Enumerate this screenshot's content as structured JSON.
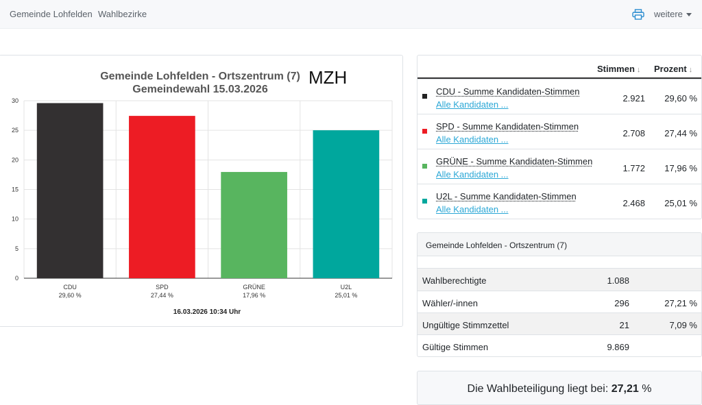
{
  "nav": {
    "gemeinde": "Gemeinde Lohfelden",
    "wahlbezirke": "Wahlbezirke",
    "print_icon": "printer-icon",
    "weitere": "weitere"
  },
  "chart_data": {
    "type": "bar",
    "title": "Gemeinde Lohfelden - Ortszentrum (7)",
    "title_extra": "MZH",
    "subtitle": "Gemeindewahl 15.03.2026",
    "categories": [
      "CDU",
      "SPD",
      "GRÜNE",
      "U2L"
    ],
    "category_labels": [
      "29,60 %",
      "27,44 %",
      "17,96 %",
      "25,01 %"
    ],
    "values": [
      29.6,
      27.44,
      17.96,
      25.01
    ],
    "colors": [
      "#333031",
      "#ed1c24",
      "#58b55f",
      "#00a79d"
    ],
    "yticks": [
      "0",
      "5",
      "10",
      "15",
      "20",
      "25",
      "30"
    ],
    "ylim": [
      0,
      30
    ],
    "grid": true,
    "footer": "16.03.2026 10:34 Uhr"
  },
  "results": {
    "col_votes": "Stimmen",
    "col_pct": "Prozent",
    "sort_arrow": "↓",
    "rows": [
      {
        "party": "CDU - Summe Kandidaten-Stimmen",
        "link": "Alle Kandidaten ...",
        "votes": "2.921",
        "pct": "29,60 %",
        "color": "#222222"
      },
      {
        "party": "SPD - Summe Kandidaten-Stimmen",
        "link": "Alle Kandidaten ...",
        "votes": "2.708",
        "pct": "27,44 %",
        "color": "#ed1c24"
      },
      {
        "party": "GRÜNE - Summe Kandidaten-Stimmen",
        "link": "Alle Kandidaten ...",
        "votes": "1.772",
        "pct": "17,96 %",
        "color": "#58b55f"
      },
      {
        "party": "U2L - Summe Kandidaten-Stimmen",
        "link": "Alle Kandidaten ...",
        "votes": "2.468",
        "pct": "25,01 %",
        "color": "#00a79d"
      }
    ]
  },
  "summary": {
    "title": "Gemeinde Lohfelden - Ortszentrum (7)",
    "rows": [
      {
        "label": "Wahlberechtigte",
        "value": "1.088",
        "pct": ""
      },
      {
        "label": "Wähler/-innen",
        "value": "296",
        "pct": "27,21 %"
      },
      {
        "label": "Ungültige Stimmzettel",
        "value": "21",
        "pct": "7,09 %"
      },
      {
        "label": "Gültige Stimmen",
        "value": "9.869",
        "pct": ""
      }
    ]
  },
  "turnout": {
    "text": "Die Wahlbeteiligung liegt bei:",
    "value": "27,21",
    "unit": "%"
  }
}
